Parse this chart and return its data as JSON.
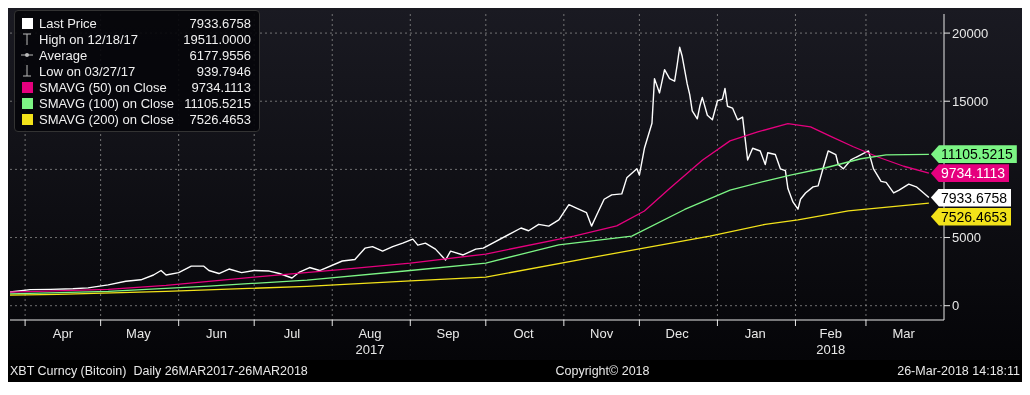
{
  "chart_data": {
    "type": "line",
    "subtitle": "XBT Curncy (Bitcoin)  Daily 26MAR2017-26MAR2018",
    "annotations": [
      "High on 12/18/17",
      "19511.0000",
      "Average",
      "6177.9556",
      "Low on 03/27/17",
      "939.7946",
      "Copyright© 2018",
      "26-Mar-2018 14:18:11"
    ],
    "xlim": [
      "2017-03-26",
      "2018-04-01"
    ],
    "xticks": [
      {
        "value": "2017-04-01",
        "label": null
      },
      {
        "value": "2017-04-16",
        "label": "Apr"
      },
      {
        "value": "2017-05-01",
        "label": null
      },
      {
        "value": "2017-05-16",
        "label": "May"
      },
      {
        "value": "2017-06-01",
        "label": null
      },
      {
        "value": "2017-06-16",
        "label": "Jun"
      },
      {
        "value": "2017-07-01",
        "label": null
      },
      {
        "value": "2017-07-16",
        "label": "Jul"
      },
      {
        "value": "2017-08-01",
        "label": null
      },
      {
        "value": "2017-08-16",
        "label": "Aug\n2017"
      },
      {
        "value": "2017-09-01",
        "label": null
      },
      {
        "value": "2017-09-16",
        "label": "Sep"
      },
      {
        "value": "2017-10-01",
        "label": null
      },
      {
        "value": "2017-10-16",
        "label": "Oct"
      },
      {
        "value": "2017-11-01",
        "label": null
      },
      {
        "value": "2017-11-16",
        "label": "Nov"
      },
      {
        "value": "2017-12-01",
        "label": null
      },
      {
        "value": "2017-12-16",
        "label": "Dec"
      },
      {
        "value": "2018-01-01",
        "label": null
      },
      {
        "value": "2018-01-16",
        "label": "Jan"
      },
      {
        "value": "2018-02-01",
        "label": null
      },
      {
        "value": "2018-02-15",
        "label": "Feb\n2018"
      },
      {
        "value": "2018-03-01",
        "label": null
      },
      {
        "value": "2018-03-16",
        "label": "Mar"
      }
    ],
    "ylim": [
      -1050,
      21400
    ],
    "yticks": [
      0,
      5000,
      {
        "value": 10000,
        "label": null
      },
      15000,
      20000
    ],
    "grid": true,
    "legend": "top left",
    "series": [
      {
        "name": "Last Price",
        "color": "#ffffff",
        "x": [
          "2017-03-26",
          "2017-04-03",
          "2017-04-11",
          "2017-04-20",
          "2017-04-26",
          "2017-05-04",
          "2017-05-11",
          "2017-05-17",
          "2017-05-22",
          "2017-05-25",
          "2017-05-27",
          "2017-06-01",
          "2017-06-06",
          "2017-06-11",
          "2017-06-13",
          "2017-06-17",
          "2017-06-21",
          "2017-06-26",
          "2017-07-01",
          "2017-07-07",
          "2017-07-11",
          "2017-07-16",
          "2017-07-19",
          "2017-07-23",
          "2017-07-27",
          "2017-08-05",
          "2017-08-10",
          "2017-08-14",
          "2017-08-17",
          "2017-08-21",
          "2017-08-25",
          "2017-08-29",
          "2017-09-02",
          "2017-09-04",
          "2017-09-07",
          "2017-09-11",
          "2017-09-15",
          "2017-09-17",
          "2017-09-22",
          "2017-09-27",
          "2017-09-30",
          "2017-10-11",
          "2017-10-15",
          "2017-10-18",
          "2017-10-22",
          "2017-10-26",
          "2017-10-30",
          "2017-11-03",
          "2017-11-06",
          "2017-11-10",
          "2017-11-12",
          "2017-11-14",
          "2017-11-17",
          "2017-11-20",
          "2017-11-24",
          "2017-11-26",
          "2017-11-30",
          "2017-12-01",
          "2017-12-03",
          "2017-12-06",
          "2017-12-07",
          "2017-12-09",
          "2017-12-11",
          "2017-12-13",
          "2017-12-15",
          "2017-12-16",
          "2017-12-17",
          "2017-12-18",
          "2017-12-20",
          "2017-12-21",
          "2017-12-22",
          "2017-12-24",
          "2017-12-25",
          "2017-12-26",
          "2017-12-28",
          "2017-12-30",
          "2018-01-01",
          "2018-01-03",
          "2018-01-04",
          "2018-01-05",
          "2018-01-07",
          "2018-01-09",
          "2018-01-11",
          "2018-01-13",
          "2018-01-15",
          "2018-01-18",
          "2018-01-20",
          "2018-01-21",
          "2018-01-24",
          "2018-01-26",
          "2018-01-28",
          "2018-01-29",
          "2018-01-31",
          "2018-02-02",
          "2018-02-03",
          "2018-02-05",
          "2018-02-08",
          "2018-02-10",
          "2018-02-12",
          "2018-02-14",
          "2018-02-17",
          "2018-02-18",
          "2018-02-20",
          "2018-02-23",
          "2018-02-25",
          "2018-03-02",
          "2018-03-04",
          "2018-03-07",
          "2018-03-09",
          "2018-03-12",
          "2018-03-14",
          "2018-03-18",
          "2018-03-21",
          "2018-03-26"
        ],
        "values": [
          1000,
          1180,
          1200,
          1245,
          1310,
          1530,
          1790,
          1900,
          2250,
          2580,
          2250,
          2430,
          2900,
          2900,
          2580,
          2360,
          2690,
          2430,
          2580,
          2540,
          2360,
          2030,
          2470,
          2800,
          2580,
          3280,
          3390,
          4220,
          4330,
          4000,
          4330,
          4590,
          4880,
          4440,
          4590,
          4150,
          3350,
          4000,
          3720,
          4150,
          4220,
          5310,
          5700,
          5500,
          5970,
          5840,
          6300,
          7410,
          7150,
          6820,
          5840,
          6630,
          7810,
          8130,
          8200,
          9380,
          10040,
          9580,
          11550,
          13380,
          16660,
          15610,
          17320,
          16660,
          16470,
          17650,
          18960,
          18300,
          16270,
          15480,
          14300,
          13710,
          14630,
          15280,
          13970,
          13640,
          15020,
          15150,
          15940,
          14630,
          14500,
          13640,
          13840,
          10690,
          11550,
          11350,
          10360,
          11220,
          11090,
          10040,
          9910,
          8590,
          7610,
          7080,
          7810,
          8270,
          8720,
          8790,
          10100,
          11350,
          11090,
          10360,
          10040,
          10690,
          10890,
          11350,
          10040,
          9120,
          9050,
          8270,
          8460,
          8920,
          8720,
          7933.6758
        ],
        "value_labels": [
          null,
          null,
          null,
          null,
          null,
          null,
          null,
          null,
          null,
          null,
          null,
          null,
          null,
          null,
          null,
          null,
          null,
          null,
          null,
          null,
          null,
          null,
          null,
          null,
          null,
          null,
          null,
          null,
          null,
          null,
          null,
          null,
          null,
          null,
          null,
          null,
          null,
          null,
          null,
          null,
          null,
          null,
          null,
          null,
          null,
          null,
          null,
          null,
          null,
          null,
          null,
          null,
          null,
          null,
          null,
          null,
          null,
          null,
          null,
          null,
          null,
          null,
          null,
          null,
          null,
          null,
          null,
          null,
          null,
          null,
          null,
          null,
          null,
          null,
          null,
          null,
          null,
          null,
          null,
          null,
          null,
          null,
          null,
          null,
          null,
          null,
          null,
          null,
          null,
          null,
          null,
          null,
          null,
          null,
          null,
          null,
          null,
          null,
          null,
          null,
          null,
          null,
          null,
          null,
          null,
          null,
          null,
          null,
          null,
          null,
          null,
          null,
          null,
          "7933.6758"
        ]
      },
      {
        "name": "SMAVG (50) on Close",
        "color": "#e5007e",
        "x": [
          "2017-03-26",
          "2017-05-04",
          "2017-05-27",
          "2017-07-01",
          "2017-08-03",
          "2017-09-01",
          "2017-10-01",
          "2017-11-05",
          "2017-11-22",
          "2017-12-03",
          "2017-12-13",
          "2017-12-26",
          "2018-01-06",
          "2018-01-17",
          "2018-01-29",
          "2018-02-07",
          "2018-02-15",
          "2018-02-24",
          "2018-03-06",
          "2018-03-16",
          "2018-03-26"
        ],
        "values": [
          1000,
          1200,
          1490,
          2100,
          2620,
          3130,
          3790,
          5100,
          5860,
          6950,
          8590,
          10670,
          12090,
          12750,
          13360,
          13120,
          12420,
          11660,
          10890,
          10230,
          9734.1113
        ],
        "value_labels": [
          null,
          null,
          null,
          null,
          null,
          null,
          null,
          null,
          null,
          null,
          null,
          null,
          null,
          null,
          null,
          null,
          null,
          null,
          null,
          null,
          "9734.1113"
        ]
      },
      {
        "name": "SMAVG (100) on Close",
        "color": "#7cf585",
        "x": [
          "2017-03-26",
          "2017-05-04",
          "2017-06-13",
          "2017-07-22",
          "2017-09-01",
          "2017-10-01",
          "2017-10-30",
          "2017-11-28",
          "2017-12-19",
          "2018-01-06",
          "2018-01-20",
          "2018-01-30",
          "2018-02-13",
          "2018-02-27",
          "2018-03-09",
          "2018-03-26"
        ],
        "values": [
          870,
          1050,
          1440,
          1880,
          2580,
          3130,
          4460,
          5100,
          7060,
          8480,
          9140,
          9580,
          10120,
          10780,
          11070,
          11105.5215
        ],
        "value_labels": [
          null,
          null,
          null,
          null,
          null,
          null,
          null,
          null,
          null,
          null,
          null,
          null,
          null,
          null,
          null,
          "11105.5215"
        ]
      },
      {
        "name": "SMAVG (200) on Close",
        "color": "#f2e21a",
        "x": [
          "2017-03-26",
          "2017-04-14",
          "2017-05-27",
          "2017-07-22",
          "2017-09-01",
          "2017-10-01",
          "2017-11-14",
          "2017-12-29",
          "2018-01-20",
          "2018-02-02",
          "2018-02-22",
          "2018-03-26"
        ],
        "values": [
          770,
          830,
          1050,
          1420,
          1820,
          2100,
          3600,
          5100,
          5970,
          6300,
          6950,
          7526.4653
        ],
        "value_labels": [
          null,
          null,
          null,
          null,
          null,
          null,
          null,
          null,
          null,
          null,
          null,
          "7526.4653"
        ]
      }
    ]
  }
}
